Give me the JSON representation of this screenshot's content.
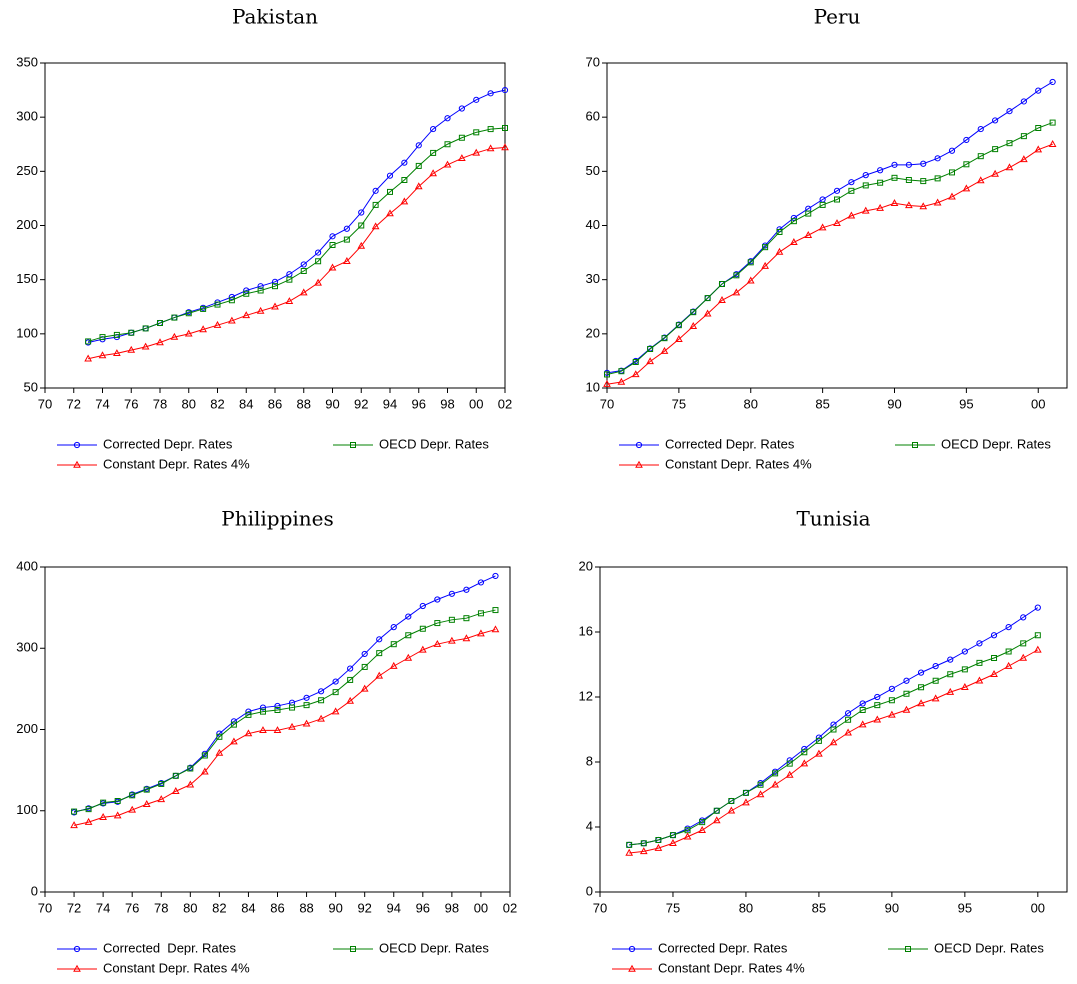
{
  "chart_data": [
    {
      "type": "line",
      "title": "Pakistan",
      "x": [
        1973,
        1974,
        1975,
        1976,
        1977,
        1978,
        1979,
        1980,
        1981,
        1982,
        1983,
        1984,
        1985,
        1986,
        1987,
        1988,
        1989,
        1990,
        1991,
        1992,
        1993,
        1994,
        1995,
        1996,
        1997,
        1998,
        1999,
        2000,
        2001,
        2002
      ],
      "series": [
        {
          "name": "Corrected Depr. Rates",
          "color": "#0000ff",
          "marker": "circle",
          "values": [
            92,
            95,
            97,
            101,
            105,
            110,
            115,
            120,
            124,
            129,
            134,
            140,
            144,
            148,
            155,
            164,
            175,
            190,
            197,
            212,
            232,
            246,
            258,
            274,
            289,
            299,
            308,
            316,
            322,
            325
          ]
        },
        {
          "name": "OECD Depr. Rates",
          "color": "#008000",
          "marker": "square",
          "values": [
            93,
            97,
            99,
            101,
            105,
            110,
            115,
            119,
            123,
            127,
            131,
            137,
            140,
            144,
            150,
            158,
            167,
            182,
            187,
            200,
            219,
            231,
            242,
            255,
            267,
            275,
            281,
            286,
            289,
            290
          ]
        },
        {
          "name": "Constant Depr. Rates 4%",
          "color": "#ff0000",
          "marker": "triangle",
          "values": [
            77,
            80,
            82,
            85,
            88,
            92,
            97,
            100,
            104,
            108,
            112,
            117,
            121,
            125,
            130,
            138,
            147,
            161,
            167,
            181,
            199,
            211,
            222,
            236,
            248,
            256,
            262,
            267,
            271,
            272
          ]
        }
      ],
      "xlim": [
        1970,
        2002
      ],
      "xticks": [
        {
          "value": 1970,
          "label": "70"
        },
        {
          "value": 1972,
          "label": "72"
        },
        {
          "value": 1974,
          "label": "74"
        },
        {
          "value": 1976,
          "label": "76"
        },
        {
          "value": 1978,
          "label": "78"
        },
        {
          "value": 1980,
          "label": "80"
        },
        {
          "value": 1982,
          "label": "82"
        },
        {
          "value": 1984,
          "label": "84"
        },
        {
          "value": 1986,
          "label": "86"
        },
        {
          "value": 1988,
          "label": "88"
        },
        {
          "value": 1990,
          "label": "90"
        },
        {
          "value": 1992,
          "label": "92"
        },
        {
          "value": 1994,
          "label": "94"
        },
        {
          "value": 1996,
          "label": "96"
        },
        {
          "value": 1998,
          "label": "98"
        },
        {
          "value": 2000,
          "label": "00"
        },
        {
          "value": 2002,
          "label": "02"
        }
      ],
      "ylim": [
        50,
        350
      ],
      "yticks": [
        50,
        100,
        150,
        200,
        250,
        300,
        350
      ]
    },
    {
      "type": "line",
      "title": "Peru",
      "x": [
        1970,
        1971,
        1972,
        1973,
        1974,
        1975,
        1976,
        1977,
        1978,
        1979,
        1980,
        1981,
        1982,
        1983,
        1984,
        1985,
        1986,
        1987,
        1988,
        1989,
        1990,
        1991,
        1992,
        1993,
        1994,
        1995,
        1996,
        1997,
        1998,
        1999,
        2000,
        2001
      ],
      "series": [
        {
          "name": "Corrected Depr. Rates",
          "color": "#0000ff",
          "marker": "circle",
          "values": [
            12.8,
            13.2,
            15,
            17.3,
            19.3,
            21.7,
            24.1,
            26.6,
            29.2,
            31,
            33.4,
            36.3,
            39.3,
            41.4,
            43.1,
            44.8,
            46.4,
            48,
            49.3,
            50.2,
            51.2,
            51.2,
            51.4,
            52.4,
            53.8,
            55.8,
            57.8,
            59.4,
            61.1,
            62.9,
            64.9,
            66.5
          ]
        },
        {
          "name": "OECD Depr. Rates",
          "color": "#008000",
          "marker": "square",
          "values": [
            12.5,
            13.1,
            14.8,
            17.2,
            19.2,
            21.6,
            24,
            26.6,
            29.2,
            30.8,
            33.2,
            36,
            38.8,
            40.8,
            42.2,
            43.8,
            44.8,
            46.4,
            47.4,
            47.9,
            48.8,
            48.4,
            48.2,
            48.7,
            49.8,
            51.3,
            52.8,
            54.1,
            55.2,
            56.5,
            58,
            59
          ]
        },
        {
          "name": "Constant Depr. Rates 4%",
          "color": "#ff0000",
          "marker": "triangle",
          "values": [
            10.7,
            11.1,
            12.5,
            14.9,
            16.8,
            19,
            21.4,
            23.7,
            26.2,
            27.6,
            29.8,
            32.5,
            35.1,
            36.9,
            38.2,
            39.6,
            40.4,
            41.8,
            42.7,
            43.2,
            44.1,
            43.7,
            43.5,
            44.2,
            45.3,
            46.8,
            48.3,
            49.5,
            50.7,
            52.2,
            54,
            55
          ]
        }
      ],
      "xlim": [
        1970,
        2002
      ],
      "xticks": [
        {
          "value": 1970,
          "label": "70"
        },
        {
          "value": 1975,
          "label": "75"
        },
        {
          "value": 1980,
          "label": "80"
        },
        {
          "value": 1985,
          "label": "85"
        },
        {
          "value": 1990,
          "label": "90"
        },
        {
          "value": 1995,
          "label": "95"
        },
        {
          "value": 2000,
          "label": "00"
        }
      ],
      "ylim": [
        10,
        70
      ],
      "yticks": [
        10,
        20,
        30,
        40,
        50,
        60,
        70
      ]
    },
    {
      "type": "line",
      "title": "Philippines",
      "x": [
        1972,
        1973,
        1974,
        1975,
        1976,
        1977,
        1978,
        1979,
        1980,
        1981,
        1982,
        1983,
        1984,
        1985,
        1986,
        1987,
        1988,
        1989,
        1990,
        1991,
        1992,
        1993,
        1994,
        1995,
        1996,
        1997,
        1998,
        1999,
        2000,
        2001
      ],
      "series": [
        {
          "name": "Corrected  Depr. Rates",
          "color": "#0000ff",
          "marker": "circle",
          "values": [
            98,
            103,
            109,
            111,
            120,
            127,
            134,
            143,
            153,
            170,
            195,
            210,
            222,
            227,
            229,
            233,
            239,
            247,
            259,
            275,
            293,
            311,
            326,
            339,
            352,
            360,
            367,
            372,
            381,
            389
          ]
        },
        {
          "name": "OECD Depr. Rates",
          "color": "#008000",
          "marker": "square",
          "values": [
            99,
            102,
            110,
            112,
            119,
            126,
            133,
            143,
            152,
            168,
            191,
            206,
            218,
            222,
            224,
            227,
            230,
            236,
            246,
            261,
            277,
            294,
            305,
            316,
            324,
            331,
            335,
            337,
            343,
            347
          ]
        },
        {
          "name": "Constant Depr. Rates 4%",
          "color": "#ff0000",
          "marker": "triangle",
          "values": [
            82,
            86,
            92,
            94,
            101,
            108,
            114,
            124,
            132,
            148,
            171,
            185,
            195,
            199,
            199,
            203,
            207,
            213,
            222,
            235,
            250,
            266,
            278,
            288,
            298,
            305,
            309,
            312,
            318,
            323
          ]
        }
      ],
      "xlim": [
        1970,
        2002
      ],
      "xticks": [
        {
          "value": 1970,
          "label": "70"
        },
        {
          "value": 1972,
          "label": "72"
        },
        {
          "value": 1974,
          "label": "74"
        },
        {
          "value": 1976,
          "label": "76"
        },
        {
          "value": 1978,
          "label": "78"
        },
        {
          "value": 1980,
          "label": "80"
        },
        {
          "value": 1982,
          "label": "82"
        },
        {
          "value": 1984,
          "label": "84"
        },
        {
          "value": 1986,
          "label": "86"
        },
        {
          "value": 1988,
          "label": "88"
        },
        {
          "value": 1990,
          "label": "90"
        },
        {
          "value": 1992,
          "label": "92"
        },
        {
          "value": 1994,
          "label": "94"
        },
        {
          "value": 1996,
          "label": "96"
        },
        {
          "value": 1998,
          "label": "98"
        },
        {
          "value": 2000,
          "label": "00"
        },
        {
          "value": 2002,
          "label": "02"
        }
      ],
      "ylim": [
        0,
        400
      ],
      "yticks": [
        0,
        100,
        200,
        300,
        400
      ]
    },
    {
      "type": "line",
      "title": "Tunisia",
      "x": [
        1972,
        1973,
        1974,
        1975,
        1976,
        1977,
        1978,
        1979,
        1980,
        1981,
        1982,
        1983,
        1984,
        1985,
        1986,
        1987,
        1988,
        1989,
        1990,
        1991,
        1992,
        1993,
        1994,
        1995,
        1996,
        1997,
        1998,
        1999,
        2000
      ],
      "series": [
        {
          "name": "Corrected Depr. Rates",
          "color": "#0000ff",
          "marker": "circle",
          "values": [
            2.9,
            3,
            3.2,
            3.5,
            3.9,
            4.4,
            5,
            5.6,
            6.1,
            6.7,
            7.4,
            8.1,
            8.8,
            9.5,
            10.3,
            11,
            11.6,
            12,
            12.5,
            13,
            13.5,
            13.9,
            14.3,
            14.8,
            15.3,
            15.8,
            16.3,
            16.9,
            17.5
          ]
        },
        {
          "name": "OECD Depr. Rates",
          "color": "#008000",
          "marker": "square",
          "values": [
            2.9,
            3,
            3.2,
            3.5,
            3.8,
            4.3,
            5,
            5.6,
            6.1,
            6.6,
            7.3,
            7.9,
            8.6,
            9.3,
            10,
            10.6,
            11.2,
            11.5,
            11.8,
            12.2,
            12.6,
            13,
            13.4,
            13.7,
            14.1,
            14.4,
            14.8,
            15.3,
            15.8
          ]
        },
        {
          "name": "Constant Depr. Rates 4%",
          "color": "#ff0000",
          "marker": "triangle",
          "values": [
            2.4,
            2.5,
            2.7,
            3,
            3.4,
            3.8,
            4.4,
            5,
            5.5,
            6,
            6.6,
            7.2,
            7.9,
            8.5,
            9.2,
            9.8,
            10.3,
            10.6,
            10.9,
            11.2,
            11.6,
            11.9,
            12.3,
            12.6,
            13,
            13.4,
            13.9,
            14.4,
            14.9
          ]
        }
      ],
      "xlim": [
        1970,
        2002
      ],
      "xticks": [
        {
          "value": 1970,
          "label": "70"
        },
        {
          "value": 1975,
          "label": "75"
        },
        {
          "value": 1980,
          "label": "80"
        },
        {
          "value": 1985,
          "label": "85"
        },
        {
          "value": 1990,
          "label": "90"
        },
        {
          "value": 1995,
          "label": "95"
        },
        {
          "value": 2000,
          "label": "00"
        }
      ],
      "ylim": [
        0,
        20
      ],
      "yticks": [
        0,
        4,
        8,
        12,
        16,
        20
      ]
    }
  ]
}
